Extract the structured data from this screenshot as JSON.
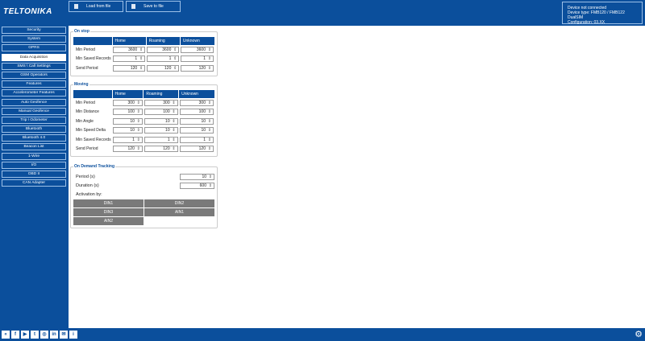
{
  "header": {
    "logo": "TELTONIKA",
    "load_label": "Load from file",
    "save_label": "Save to file",
    "device_status": "Device not connected",
    "device_type": "Device type: FMB120 / FMB122 DualSIM",
    "configuration": "Configuration: 03.XX"
  },
  "sidebar": {
    "items": [
      "Security",
      "System",
      "GPRS",
      "Data Acquisition",
      "SMS \\ Call Settings",
      "GSM Operators",
      "Features",
      "Accelerometer Features",
      "Auto Geofence",
      "Manual Geofence",
      "Trip \\ Odometer",
      "Bluetooth",
      "Bluetooth 4.0",
      "Beacon List",
      "1-Wire",
      "I/O",
      "OBD II",
      "CAN Adapter"
    ],
    "active": "Data Acquisition"
  },
  "columns": [
    "Home",
    "Roaming",
    "Unknown"
  ],
  "on_stop": {
    "title": "On stop",
    "rows": [
      {
        "label": "Min Period",
        "values": [
          "3600",
          "3600",
          "3600"
        ]
      },
      {
        "label": "Min Saved Records",
        "values": [
          "1",
          "1",
          "1"
        ]
      },
      {
        "label": "Send Period",
        "values": [
          "120",
          "120",
          "120"
        ]
      }
    ]
  },
  "moving": {
    "title": "Moving",
    "rows": [
      {
        "label": "Min Period",
        "values": [
          "300",
          "300",
          "300"
        ]
      },
      {
        "label": "Min Distance",
        "values": [
          "100",
          "100",
          "100"
        ]
      },
      {
        "label": "Min Angle",
        "values": [
          "10",
          "10",
          "10"
        ]
      },
      {
        "label": "Min Speed Delta",
        "values": [
          "10",
          "10",
          "10"
        ]
      },
      {
        "label": "Min Saved Records",
        "values": [
          "1",
          "1",
          "1"
        ]
      },
      {
        "label": "Send Period",
        "values": [
          "120",
          "120",
          "120"
        ]
      }
    ]
  },
  "on_demand": {
    "title": "On Demand Tracking",
    "period_label": "Period  (s)",
    "period": "10",
    "duration_label": "Duration  (s)",
    "duration": "600",
    "activation_label": "Activation by:",
    "buttons": [
      "DIN1",
      "DIN2",
      "DIN3",
      "AIN1",
      "AIN2"
    ]
  },
  "footer": {
    "icons": [
      "teltonika-icon",
      "facebook-icon",
      "youtube-icon",
      "twitter-icon",
      "instagram-icon",
      "linkedin-icon",
      "forum-icon",
      "info-icon"
    ]
  },
  "colors": {
    "brand": "#0b4f9c",
    "button_gray": "#7a7a7a"
  }
}
